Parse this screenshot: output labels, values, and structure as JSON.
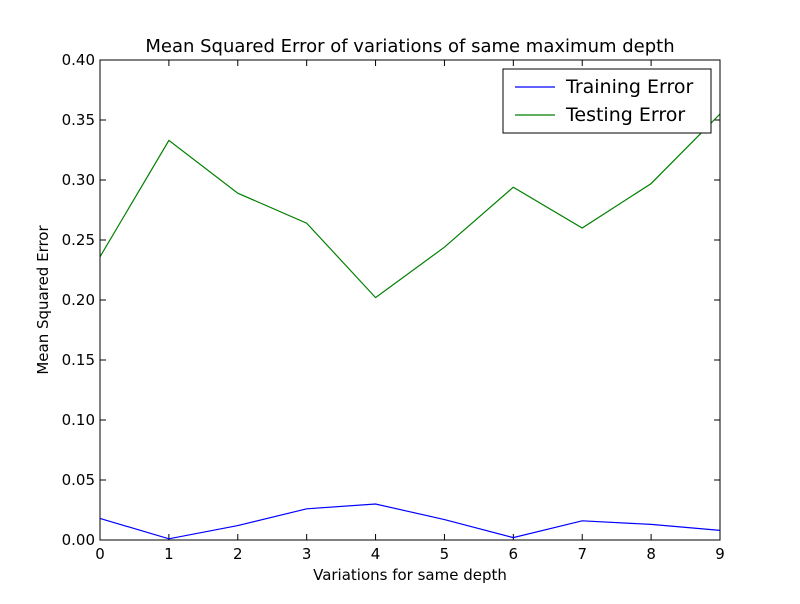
{
  "chart_data": {
    "type": "line",
    "title": "Mean Squared Error of variations of same maximum depth",
    "xlabel": "Variations for same depth",
    "ylabel": "Mean Squared Error",
    "xlim": [
      0,
      9
    ],
    "ylim": [
      0,
      0.4
    ],
    "xticks": [
      "0",
      "1",
      "2",
      "3",
      "4",
      "5",
      "6",
      "7",
      "8",
      "9"
    ],
    "yticks": [
      "0.00",
      "0.05",
      "0.10",
      "0.15",
      "0.20",
      "0.25",
      "0.30",
      "0.35",
      "0.40"
    ],
    "grid": false,
    "legend_position": "top-right",
    "x": [
      0,
      1,
      2,
      3,
      4,
      5,
      6,
      7,
      8,
      9
    ],
    "series": [
      {
        "name": "Training Error",
        "color": "#0000ff",
        "values": [
          0.018,
          0.001,
          0.012,
          0.026,
          0.03,
          0.017,
          0.002,
          0.016,
          0.013,
          0.008
        ]
      },
      {
        "name": "Testing Error",
        "color": "#008000",
        "values": [
          0.236,
          0.333,
          0.289,
          0.264,
          0.202,
          0.244,
          0.294,
          0.26,
          0.297,
          0.355
        ]
      }
    ]
  }
}
